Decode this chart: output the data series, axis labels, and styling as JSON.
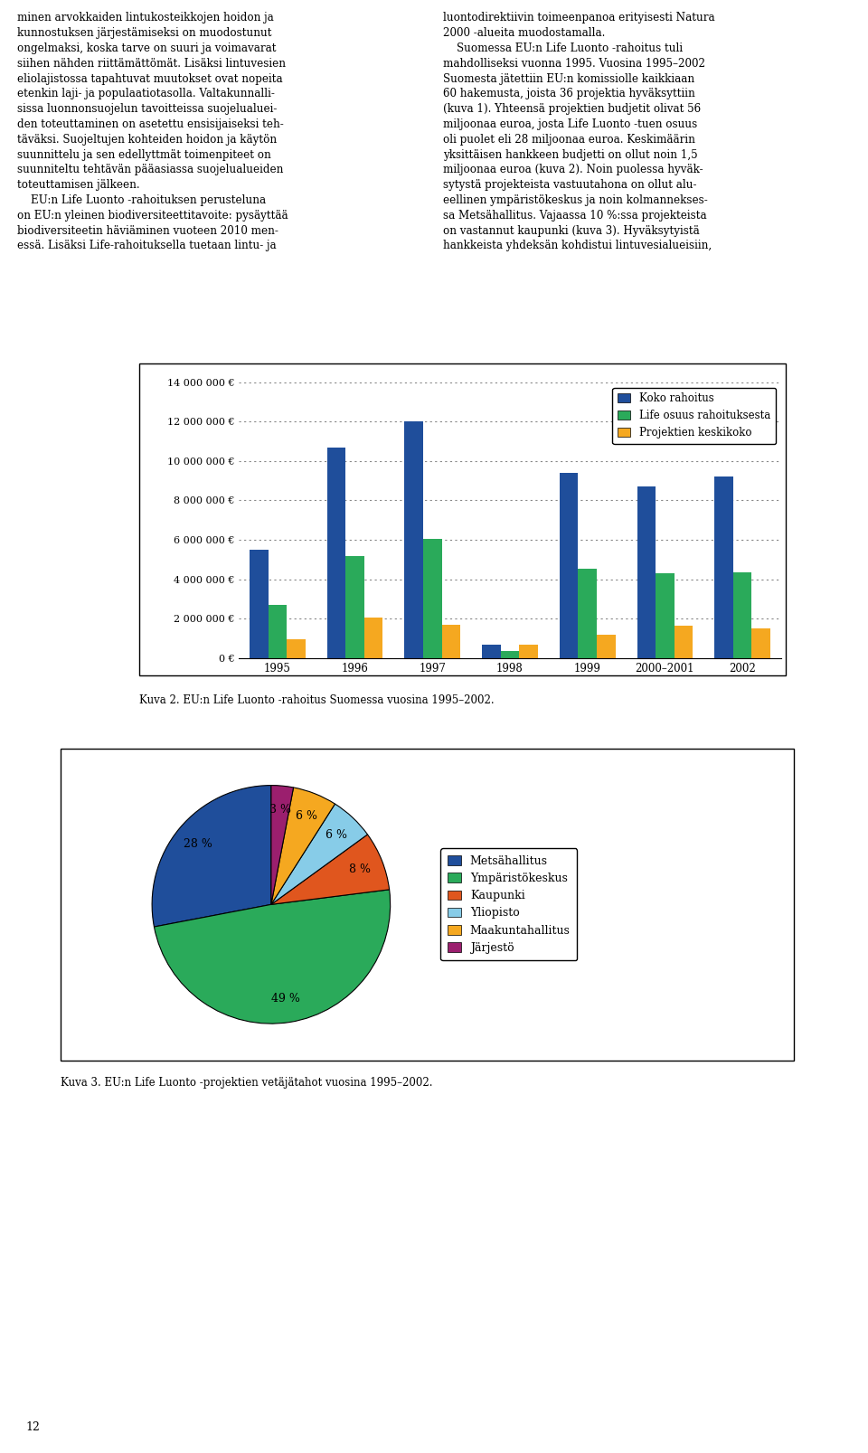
{
  "bar_categories": [
    "1995",
    "1996",
    "1997",
    "1998",
    "1999",
    "2000–2001",
    "2002"
  ],
  "bar_koko": [
    5500000,
    10700000,
    12000000,
    700000,
    9400000,
    8700000,
    9200000
  ],
  "bar_life": [
    2700000,
    5200000,
    6050000,
    350000,
    4550000,
    4300000,
    4350000
  ],
  "bar_projekti": [
    950000,
    2050000,
    1700000,
    700000,
    1200000,
    1650000,
    1500000
  ],
  "bar_color_koko": "#1f4e9b",
  "bar_color_life": "#2aaa5a",
  "bar_color_projekti": "#f5a820",
  "bar_legend": [
    "Koko rahoitus",
    "Life osuus rahoituksesta",
    "Projektien keskikoko"
  ],
  "bar_yticks": [
    0,
    2000000,
    4000000,
    6000000,
    8000000,
    10000000,
    12000000,
    14000000
  ],
  "bar_yticklabels": [
    "0 €",
    "2 000 000 €",
    "4 000 000 €",
    "6 000 000 €",
    "8 000 000 €",
    "10 000 000 €",
    "12 000 000 €",
    "14 000 000 €"
  ],
  "bar_caption": "Kuva 2. EU:n Life Luonto -rahoitus Suomessa vuosina 1995–2002.",
  "pie_labels": [
    "Metsähallitus",
    "Ympäristökeskus",
    "Kaupunki",
    "Yliopisto",
    "Maakuntahallitus",
    "Järjestö"
  ],
  "pie_values": [
    28,
    49,
    8,
    6,
    6,
    3
  ],
  "pie_colors": [
    "#1f4e9b",
    "#2aaa5a",
    "#e0561e",
    "#87cce8",
    "#f5a820",
    "#9b1f6e"
  ],
  "pie_caption": "Kuva 3. EU:n Life Luonto -projektien vetäjätahot vuosina 1995–2002.",
  "page_number": "12",
  "body_left": "minen arvokkaiden lintukosteikkojen hoidon ja\nkunnostuksen järjestämiseksi on muodostunut\nongelmaksi, koska tarve on suuri ja voimavarat\nsiihen nähden riittämättömät. Lisäksi lintuvesien\neliolajistossa tapahtuvat muutokset ovat nopeita\netenkin laji- ja populaatiotasolla. Valtakunnalli-\nsissa luonnonsuojelun tavoitteissa suojelualuei-\nden toteuttaminen on asetettu ensisijaiseksi teh-\ntäväksi. Suojeltujen kohteiden hoidon ja käytön\nsuunnittelu ja sen edellyttmät toimenpiteet on\nsuunniteltu tehtävän pääasiassa suojelualueiden\ntoteuttamisen jälkeen.\n    EU:n Life Luonto -rahoituksen perusteluna\non EU:n yleinen biodiversiteettitavoite: pysäyttää\nbiodiversiteetin häviäminen vuoteen 2010 men-\nessä. Lisäksi Life-rahoituksella tuetaan lintu- ja",
  "body_right": "luontodirektiivin toimeenpanoa erityisesti Natura\n2000 -alueita muodostamalla.\n    Suomessa EU:n Life Luonto -rahoitus tuli\nmahdolliseksi vuonna 1995. Vuosina 1995–2002\nSuomesta jätettiin EU:n komissiolle kaikkiaan\n60 hakemusta, joista 36 projektia hyväksyttiin\n(kuva 1). Yhteensä projektien budjetit olivat 56\nmiljoonaa euroa, josta Life Luonto -tuen osuus\noli puolet eli 28 miljoonaa euroa. Keskimäärin\nyksittäisen hankkeen budjetti on ollut noin 1,5\nmiljoonaa euroa (kuva 2). Noin puolessa hyväk-\nsytystä projekteista vastuutahona on ollut alu-\neellinen ympäristökeskus ja noin kolmannekses-\nsa Metsähallitus. Vajaassa 10 %:ssa projekteista\non vastannut kaupunki (kuva 3). Hyväksytyistä\nhankkeista yhdeksän kohdistui lintuvesialueisiin,"
}
